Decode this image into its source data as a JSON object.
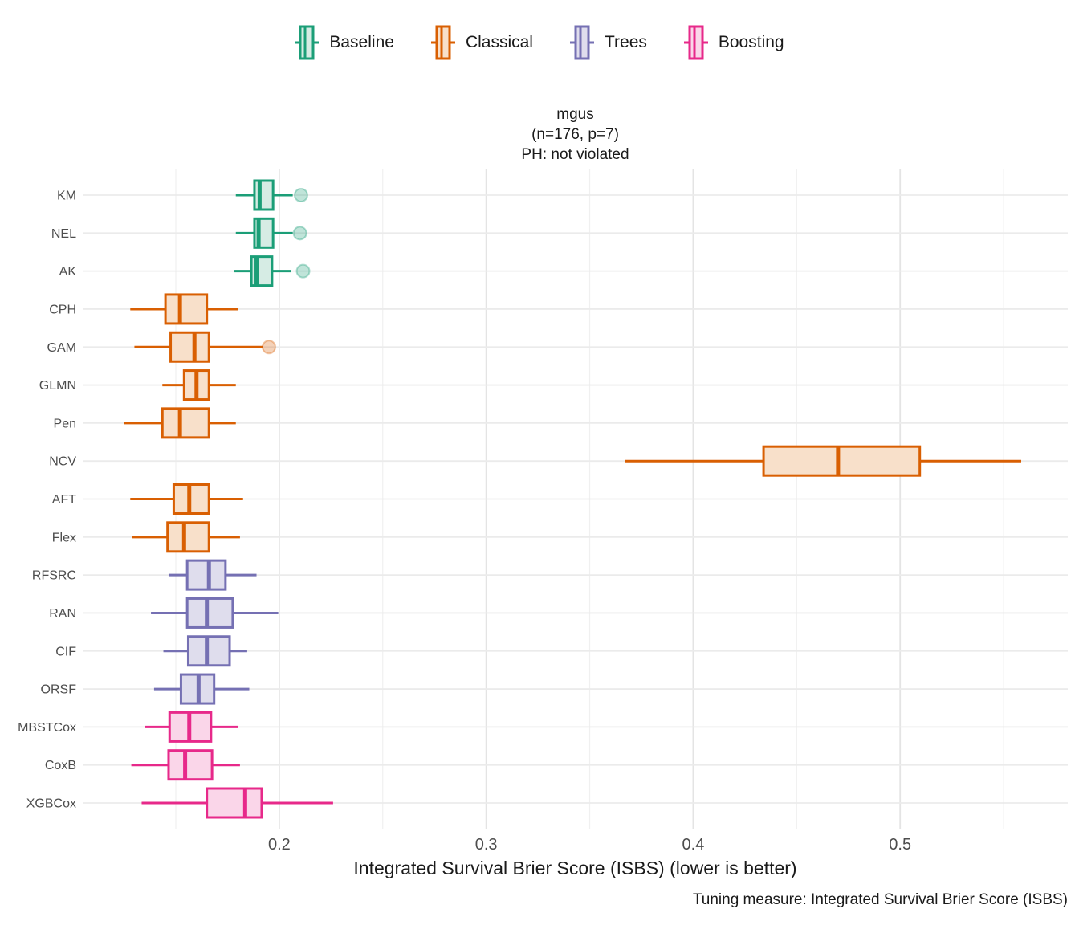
{
  "figure": {
    "title_lines": [
      "mgus",
      "(n=176, p=7)",
      "PH: not violated"
    ],
    "x_axis_label": "Integrated Survival Brier Score (ISBS) (lower is better)",
    "caption": "Tuning measure: Integrated Survival Brier Score (ISBS)",
    "background": "#FFFFFF",
    "grid_major_color": "#E4E4E4",
    "grid_minor_color": "#F0F0F0",
    "axis_text_color": "#4D4D4D"
  },
  "legend": {
    "position": "top-center",
    "items": [
      {
        "label": "Baseline",
        "color": "#1B9E77",
        "fill": "#D6ECE4"
      },
      {
        "label": "Classical",
        "color": "#D95F02",
        "fill": "#F8E0CA"
      },
      {
        "label": "Trees",
        "color": "#7570B3",
        "fill": "#DFDDED"
      },
      {
        "label": "Boosting",
        "color": "#E7298A",
        "fill": "#FAD6E9"
      }
    ]
  },
  "chart_data": {
    "type": "boxplot",
    "orientation": "horizontal",
    "title": "mgus (n=176, p=7) PH: not violated",
    "xlabel": "Integrated Survival Brier Score (ISBS) (lower is better)",
    "ylabel": "",
    "caption": "Tuning measure: Integrated Survival Brier Score (ISBS)",
    "legend_title": "",
    "grid": true,
    "xlim": [
      0.105,
      0.581
    ],
    "x_ticks": [
      0.2,
      0.3,
      0.4,
      0.5
    ],
    "x_minor_ticks": [
      0.15,
      0.25,
      0.35,
      0.45,
      0.55
    ],
    "rows": [
      {
        "model": "KM",
        "group": "Baseline",
        "low": 0.179,
        "q1": 0.188,
        "median": 0.1905,
        "q3": 0.197,
        "high": 0.2065,
        "outliers": [
          0.2105
        ]
      },
      {
        "model": "NEL",
        "group": "Baseline",
        "low": 0.179,
        "q1": 0.188,
        "median": 0.19,
        "q3": 0.197,
        "high": 0.2065,
        "outliers": [
          0.21
        ]
      },
      {
        "model": "AK",
        "group": "Baseline",
        "low": 0.178,
        "q1": 0.1865,
        "median": 0.189,
        "q3": 0.1965,
        "high": 0.2055,
        "outliers": [
          0.2115
        ]
      },
      {
        "model": "CPH",
        "group": "Classical",
        "low": 0.128,
        "q1": 0.145,
        "median": 0.152,
        "q3": 0.165,
        "high": 0.18,
        "outliers": []
      },
      {
        "model": "GAM",
        "group": "Classical",
        "low": 0.13,
        "q1": 0.1475,
        "median": 0.159,
        "q3": 0.166,
        "high": 0.192,
        "outliers": [
          0.195
        ]
      },
      {
        "model": "GLMN",
        "group": "Classical",
        "low": 0.1435,
        "q1": 0.154,
        "median": 0.16,
        "q3": 0.166,
        "high": 0.179,
        "outliers": []
      },
      {
        "model": "Pen",
        "group": "Classical",
        "low": 0.125,
        "q1": 0.1435,
        "median": 0.152,
        "q3": 0.166,
        "high": 0.179,
        "outliers": []
      },
      {
        "model": "NCV",
        "group": "Classical",
        "low": 0.367,
        "q1": 0.434,
        "median": 0.47,
        "q3": 0.5095,
        "high": 0.5585,
        "outliers": []
      },
      {
        "model": "AFT",
        "group": "Classical",
        "low": 0.128,
        "q1": 0.149,
        "median": 0.1565,
        "q3": 0.166,
        "high": 0.1825,
        "outliers": []
      },
      {
        "model": "Flex",
        "group": "Classical",
        "low": 0.129,
        "q1": 0.146,
        "median": 0.154,
        "q3": 0.166,
        "high": 0.181,
        "outliers": []
      },
      {
        "model": "RFSRC",
        "group": "Trees",
        "low": 0.1465,
        "q1": 0.1555,
        "median": 0.166,
        "q3": 0.174,
        "high": 0.189,
        "outliers": []
      },
      {
        "model": "RAN",
        "group": "Trees",
        "low": 0.138,
        "q1": 0.1555,
        "median": 0.165,
        "q3": 0.1775,
        "high": 0.1995,
        "outliers": []
      },
      {
        "model": "CIF",
        "group": "Trees",
        "low": 0.144,
        "q1": 0.156,
        "median": 0.165,
        "q3": 0.176,
        "high": 0.1845,
        "outliers": []
      },
      {
        "model": "ORSF",
        "group": "Trees",
        "low": 0.1395,
        "q1": 0.1525,
        "median": 0.161,
        "q3": 0.1685,
        "high": 0.1855,
        "outliers": []
      },
      {
        "model": "MBSTCox",
        "group": "Boosting",
        "low": 0.135,
        "q1": 0.147,
        "median": 0.1565,
        "q3": 0.167,
        "high": 0.18,
        "outliers": []
      },
      {
        "model": "CoxB",
        "group": "Boosting",
        "low": 0.1285,
        "q1": 0.1465,
        "median": 0.1545,
        "q3": 0.1675,
        "high": 0.181,
        "outliers": []
      },
      {
        "model": "XGBCox",
        "group": "Boosting",
        "low": 0.1335,
        "q1": 0.165,
        "median": 0.1835,
        "q3": 0.1915,
        "high": 0.226,
        "outliers": []
      }
    ]
  }
}
